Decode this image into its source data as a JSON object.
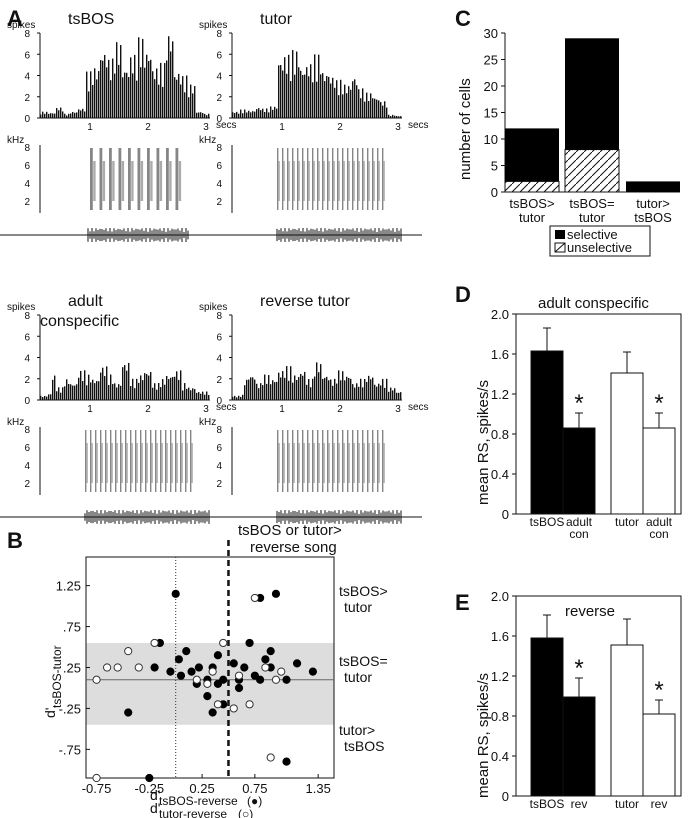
{
  "panels": {
    "A": {
      "letter": "A",
      "spikes_label": "spikes",
      "khz_label": "kHz",
      "secs_label": "secs",
      "sub": [
        {
          "title": "tsBOS",
          "title_line2": "",
          "yticks": [
            "8",
            "6",
            "4",
            "2",
            "0"
          ],
          "xticks": [
            "1",
            "2",
            "3"
          ],
          "ftick": [
            "8",
            "6",
            "4",
            "2"
          ]
        },
        {
          "title": "tutor",
          "title_line2": "",
          "yticks": [
            "8",
            "6",
            "4",
            "2",
            "0"
          ],
          "xticks": [
            "1",
            "2",
            "3"
          ],
          "ftick": [
            "8",
            "6",
            "4",
            "2"
          ]
        },
        {
          "title": "adult",
          "title_line2": "conspecific",
          "yticks": [
            "8",
            "6",
            "4",
            "2",
            "0"
          ],
          "xticks": [
            "1",
            "2",
            "3"
          ],
          "ftick": [
            "8",
            "6",
            "4",
            "2"
          ]
        },
        {
          "title": "reverse tutor",
          "title_line2": "",
          "yticks": [
            "8",
            "6",
            "4",
            "2",
            "0"
          ],
          "xticks": [
            "1",
            "2",
            "3"
          ],
          "ftick": [
            "8",
            "6",
            "4",
            "2"
          ]
        }
      ]
    },
    "B": {
      "letter": "B",
      "top_label_1": "tsBOS or tutor>",
      "top_label_2": "reverse song",
      "right_1a": "tsBOS>",
      "right_1b": "tutor",
      "right_2a": "tsBOS=",
      "right_2b": "tutor",
      "right_3a": "tutor>",
      "right_3b": "tsBOS",
      "ylabel_main": "d'",
      "ylabel_sub": "tsBOS-tutor",
      "xlabel1_main": "d'",
      "xlabel1_sub": "tsBOS-reverse",
      "xlabel1_marker": "(●)",
      "xlabel2_main": "d'",
      "xlabel2_sub": "tutor-reverse",
      "xlabel2_marker": "(○)",
      "yticks": [
        "1.25",
        ".75",
        ".25",
        "-.25",
        "-.75"
      ],
      "xticks": [
        "-0.75",
        "-0.25",
        "0.25",
        "0.75",
        "1.35"
      ]
    },
    "C": {
      "letter": "C",
      "ylabel": "number of cells",
      "yticks": [
        "0",
        "5",
        "10",
        "15",
        "20",
        "25",
        "30"
      ],
      "cat_labels": [
        [
          "tsBOS>",
          "tutor"
        ],
        [
          "tsBOS=",
          "tutor"
        ],
        [
          "tutor>",
          "tsBOS"
        ]
      ],
      "legend_selective": "selective",
      "legend_unselective": "unselective"
    },
    "D": {
      "letter": "D",
      "title": "adult conspecific",
      "ylabel": "mean RS, spikes/s",
      "yticks": [
        "0",
        "0.4",
        "0.8",
        "1.2",
        "1.6",
        "2.0"
      ],
      "xlabels": [
        [
          "tsBOS",
          ""
        ],
        [
          "adult",
          "con"
        ],
        [
          "tutor",
          ""
        ],
        [
          "adult",
          "con"
        ]
      ],
      "star": "*"
    },
    "E": {
      "letter": "E",
      "title": "reverse",
      "ylabel": "mean RS, spikes/s",
      "yticks": [
        "0",
        "0.4",
        "0.8",
        "1.2",
        "1.6",
        "2.0"
      ],
      "xlabels": [
        [
          "tsBOS",
          ""
        ],
        [
          "rev",
          ""
        ],
        [
          "tutor",
          ""
        ],
        [
          "rev",
          ""
        ]
      ],
      "star": "*"
    }
  },
  "chart_data": [
    {
      "type": "bar",
      "panel": "C",
      "categories": [
        "tsBOS>tutor",
        "tsBOS=tutor",
        "tutor>tsBOS"
      ],
      "series": [
        {
          "name": "selective",
          "values": [
            10,
            21,
            2
          ]
        },
        {
          "name": "unselective",
          "values": [
            2,
            8,
            0
          ]
        }
      ],
      "stacked": true,
      "ylabel": "number of cells",
      "ylim": [
        0,
        30
      ]
    },
    {
      "type": "bar",
      "panel": "D",
      "title": "adult conspecific",
      "categories": [
        "tsBOS",
        "adult con",
        "tutor",
        "adult con"
      ],
      "values": [
        1.63,
        0.86,
        1.41,
        0.86
      ],
      "errors": [
        0.23,
        0.15,
        0.21,
        0.15
      ],
      "fill": [
        "#000000",
        "#000000",
        "#ffffff",
        "#ffffff"
      ],
      "significant": [
        false,
        true,
        false,
        true
      ],
      "ylabel": "mean RS, spikes/s",
      "ylim": [
        0,
        2.0
      ]
    },
    {
      "type": "bar",
      "panel": "E",
      "title": "reverse",
      "categories": [
        "tsBOS",
        "rev",
        "tutor",
        "rev"
      ],
      "values": [
        1.58,
        0.99,
        1.51,
        0.82
      ],
      "errors": [
        0.23,
        0.19,
        0.26,
        0.14
      ],
      "fill": [
        "#000000",
        "#000000",
        "#ffffff",
        "#ffffff"
      ],
      "significant": [
        false,
        true,
        false,
        true
      ],
      "ylabel": "mean RS, spikes/s",
      "ylim": [
        0,
        2.0
      ]
    },
    {
      "type": "scatter",
      "panel": "B",
      "xlim": [
        -0.85,
        1.5
      ],
      "ylim": [
        -1.1,
        1.6
      ],
      "reference_lines": {
        "x_dotted": 0.0,
        "x_dashed": 0.5,
        "y_solid": 0.1,
        "shaded_band_y": [
          -0.45,
          0.55
        ]
      },
      "series": [
        {
          "name": "tsBOS-reverse",
          "marker": "filled",
          "points": [
            [
              0.0,
              1.15
            ],
            [
              -0.15,
              0.55
            ],
            [
              0.03,
              0.35
            ],
            [
              0.05,
              0.15
            ],
            [
              0.1,
              0.45
            ],
            [
              -0.2,
              0.25
            ],
            [
              -0.05,
              0.2
            ],
            [
              0.15,
              0.2
            ],
            [
              0.2,
              0.05
            ],
            [
              0.22,
              0.25
            ],
            [
              0.3,
              0.1
            ],
            [
              0.3,
              -0.1
            ],
            [
              0.35,
              0.25
            ],
            [
              0.4,
              0.05
            ],
            [
              0.45,
              0.1
            ],
            [
              0.35,
              -0.3
            ],
            [
              0.45,
              -0.2
            ],
            [
              0.55,
              0.3
            ],
            [
              0.6,
              0.0
            ],
            [
              0.65,
              0.25
            ],
            [
              0.7,
              0.55
            ],
            [
              0.75,
              0.15
            ],
            [
              0.8,
              0.1
            ],
            [
              0.85,
              0.35
            ],
            [
              0.9,
              0.45
            ],
            [
              0.8,
              1.1
            ],
            [
              0.95,
              1.15
            ],
            [
              0.9,
              0.25
            ],
            [
              0.6,
              0.1
            ],
            [
              1.05,
              0.1
            ],
            [
              1.15,
              0.3
            ],
            [
              1.3,
              0.2
            ],
            [
              1.05,
              -0.9
            ],
            [
              -0.45,
              -0.3
            ],
            [
              -0.25,
              -1.1
            ],
            [
              0.4,
              0.4
            ]
          ]
        },
        {
          "name": "tutor-reverse",
          "marker": "open",
          "points": [
            [
              -0.75,
              0.1
            ],
            [
              -0.65,
              0.25
            ],
            [
              -0.55,
              0.25
            ],
            [
              -0.45,
              0.45
            ],
            [
              -0.35,
              0.25
            ],
            [
              -0.2,
              0.55
            ],
            [
              0.2,
              0.1
            ],
            [
              0.3,
              0.05
            ],
            [
              0.35,
              0.2
            ],
            [
              0.4,
              -0.2
            ],
            [
              0.55,
              -0.25
            ],
            [
              0.6,
              0.15
            ],
            [
              0.7,
              -0.2
            ],
            [
              0.75,
              1.1
            ],
            [
              0.85,
              0.25
            ],
            [
              0.95,
              0.1
            ],
            [
              1.0,
              0.2
            ],
            [
              0.9,
              -0.85
            ],
            [
              -0.75,
              -1.1
            ],
            [
              0.45,
              0.55
            ]
          ]
        }
      ]
    }
  ]
}
